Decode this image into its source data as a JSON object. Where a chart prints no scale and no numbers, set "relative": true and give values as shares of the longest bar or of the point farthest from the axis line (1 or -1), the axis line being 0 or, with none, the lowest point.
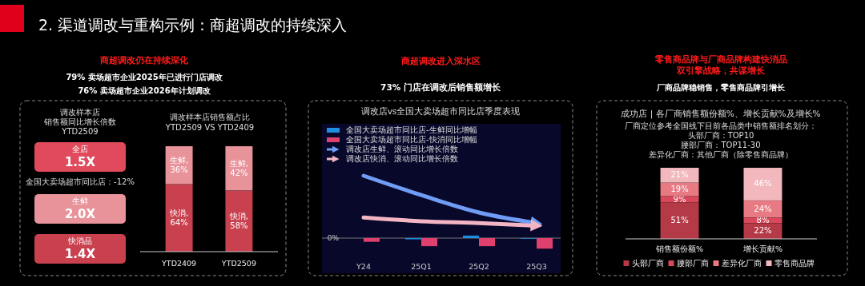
{
  "chart_data": [
    {
      "type": "other",
      "title": "2. 渠道调改与重构示例：商超调改的持续深入",
      "annotations": [
        "商超调改仍在持续深化",
        "79% 卖场超市企业2025年已进行门店调改",
        "76% 卖场超市企业2026年计划调改",
        "调改样本店",
        "销售额同比增长倍数",
        "YTD2509",
        "全国大卖场超市同比店：-12%",
        "全店",
        "1.5X",
        "生鲜",
        "2.0X",
        "快消品",
        "1.4X"
      ]
    },
    {
      "type": "bar",
      "stacked": true,
      "title": "调改样本店销售额占比\nYTD2509 VS YTD2409",
      "categories": [
        "YTD2409",
        "YTD2509"
      ],
      "series": [
        {
          "color": "#c9414f",
          "values": [
            64,
            58
          ],
          "value_labels": [
            "快消, 64%",
            "快消, 58%"
          ]
        },
        {
          "color": "#e8929a",
          "values": [
            36,
            42
          ],
          "value_labels": [
            "生鲜, 36%",
            "生鲜, 42%"
          ]
        }
      ]
    },
    {
      "type": "bar",
      "relative": true,
      "title": "调改店vs全国大卖场超市同比店季度表现",
      "categories": [
        "Y24",
        "25Q1",
        "25Q2",
        "25Q3"
      ],
      "legend": "top",
      "series": [
        {
          "name": "全国大卖场超市同比店-生鲜同比增幅",
          "color": "#1e8fe0",
          "values": [
            null,
            -0.02,
            0.04,
            -0.01
          ]
        },
        {
          "name": "全国大卖场超市同比店-快消同比增幅",
          "color": "#e0406e",
          "values": [
            -0.06,
            -0.13,
            -0.13,
            -0.17
          ]
        },
        {
          "type": "line",
          "name": "调改店生鲜、滚动同比增长倍数",
          "color": "#6f9cf5",
          "values": [
            1,
            0.69,
            0.41,
            0.24
          ]
        },
        {
          "type": "line",
          "name": "调改店快消、滚动同比增长倍数",
          "color": "#f3b4c4",
          "values": [
            0.33,
            0.27,
            0.24,
            0.2
          ]
        }
      ],
      "ref_lines": [
        {
          "axis": "y",
          "value": 0,
          "label": "0%"
        }
      ],
      "annotations": [
        "商超调改进入深水区",
        "73% 门店在调改后销售额增长"
      ]
    },
    {
      "type": "bar",
      "stacked": true,
      "title": "成功店 | 各厂商销售额份额%、增长贡献%及增长%",
      "categories": [
        "销售额份额%",
        "增长贡献%"
      ],
      "legend": "bottom",
      "series": [
        {
          "name": "头部厂商",
          "color": "#b53a48",
          "values": [
            51,
            22
          ],
          "value_labels": [
            "51%",
            "22%"
          ]
        },
        {
          "name": "腰部厂商",
          "color": "#d9485a",
          "values": [
            9,
            8
          ],
          "value_labels": [
            "9%",
            "8%"
          ]
        },
        {
          "name": "差异化厂商",
          "color": "#e87a84",
          "values": [
            19,
            24
          ],
          "value_labels": [
            "19%",
            "24%"
          ]
        },
        {
          "name": "零售商品牌",
          "color": "#f2b8bd",
          "values": [
            21,
            46
          ],
          "value_labels": [
            "21%",
            "46%"
          ]
        }
      ],
      "annotations": [
        "零售商品牌与厂商品牌构建快消品",
        "双引擎战略，共谋增长",
        "厂商品牌稳销售，零售商品牌引增长",
        "厂商定位参考全国线下目前各品类中销售额排名划分：",
        "头部厂商：TOP10",
        "腰部厂商：TOP11-30",
        "差异化厂商：其他厂商（除零售商品牌）"
      ]
    }
  ]
}
